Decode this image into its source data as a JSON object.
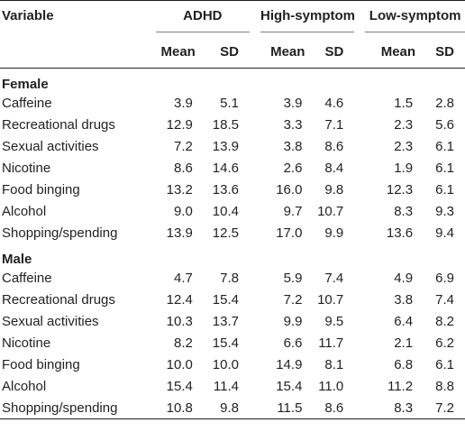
{
  "header": {
    "variable": "Variable",
    "groups": [
      "ADHD",
      "High-symptom",
      "Low-symptom"
    ],
    "mean": "Mean",
    "sd": "SD"
  },
  "sections": [
    {
      "title": "Female",
      "rows": [
        {
          "label": "Caffeine",
          "values": [
            "3.9",
            "5.1",
            "3.9",
            "4.6",
            "1.5",
            "2.8"
          ]
        },
        {
          "label": "Recreational drugs",
          "values": [
            "12.9",
            "18.5",
            "3.3",
            "7.1",
            "2.3",
            "5.6"
          ]
        },
        {
          "label": "Sexual activities",
          "values": [
            "7.2",
            "13.9",
            "3.8",
            "8.6",
            "2.3",
            "6.1"
          ]
        },
        {
          "label": "Nicotine",
          "values": [
            "8.6",
            "14.6",
            "2.6",
            "8.4",
            "1.9",
            "6.1"
          ]
        },
        {
          "label": "Food binging",
          "values": [
            "13.2",
            "13.6",
            "16.0",
            "9.8",
            "12.3",
            "6.1"
          ]
        },
        {
          "label": "Alcohol",
          "values": [
            "9.0",
            "10.4",
            "9.7",
            "10.7",
            "8.3",
            "9.3"
          ]
        },
        {
          "label": "Shopping/spending",
          "values": [
            "13.9",
            "12.5",
            "17.0",
            "9.9",
            "13.6",
            "9.4"
          ]
        }
      ]
    },
    {
      "title": "Male",
      "rows": [
        {
          "label": "Caffeine",
          "values": [
            "4.7",
            "7.8",
            "5.9",
            "7.4",
            "4.9",
            "6.9"
          ]
        },
        {
          "label": "Recreational drugs",
          "values": [
            "12.4",
            "15.4",
            "7.2",
            "10.7",
            "3.8",
            "7.4"
          ]
        },
        {
          "label": "Sexual activities",
          "values": [
            "10.3",
            "13.7",
            "9.9",
            "9.5",
            "6.4",
            "8.2"
          ]
        },
        {
          "label": "Nicotine",
          "values": [
            "8.2",
            "15.4",
            "6.6",
            "11.7",
            "2.1",
            "6.2"
          ]
        },
        {
          "label": "Food binging",
          "values": [
            "10.0",
            "10.0",
            "14.9",
            "8.1",
            "6.8",
            "6.1"
          ]
        },
        {
          "label": "Alcohol",
          "values": [
            "15.4",
            "11.4",
            "15.4",
            "11.0",
            "11.2",
            "8.8"
          ]
        },
        {
          "label": "Shopping/spending",
          "values": [
            "10.8",
            "9.8",
            "11.5",
            "8.6",
            "8.3",
            "7.2"
          ]
        }
      ]
    }
  ]
}
